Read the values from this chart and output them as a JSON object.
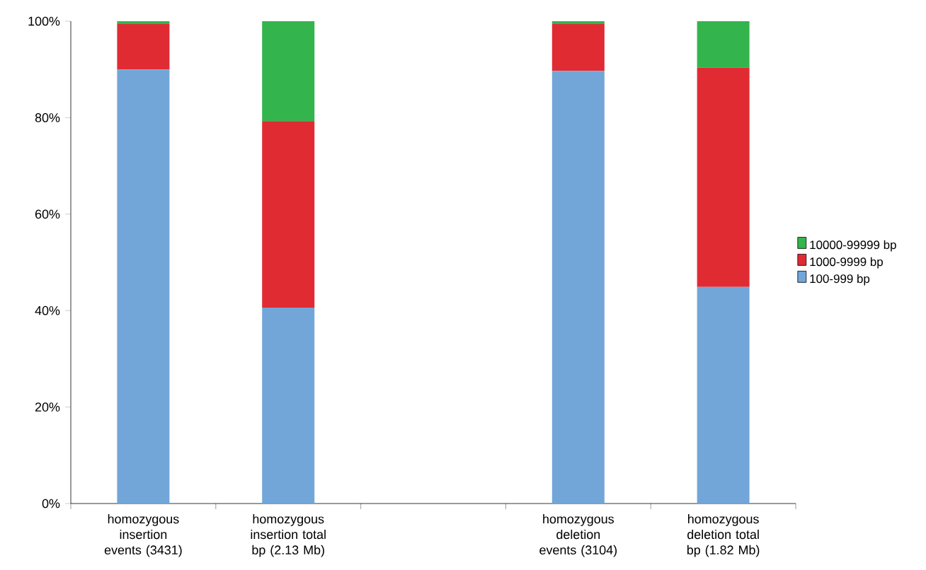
{
  "chart_data": {
    "type": "bar",
    "stacked": true,
    "legend": "right",
    "categories": [
      "homozygous insertion events (3431)",
      "homozygous insertion total bp (2.13 Mb)",
      null,
      "homozygous deletion events (3104)",
      "homozygous deletion total bp (1.82 Mb)"
    ],
    "series": [
      {
        "name": "100-999 bp",
        "color": "#72a6d8",
        "values": [
          90.0,
          40.6,
          null,
          89.7,
          44.9
        ]
      },
      {
        "name": "1000-9999 bp",
        "color": "#e02b33",
        "values": [
          9.4,
          38.7,
          null,
          9.7,
          45.5
        ]
      },
      {
        "name": "10000-99999 bp",
        "color": "#34b44d",
        "values": [
          0.6,
          20.7,
          null,
          0.6,
          9.6
        ]
      }
    ],
    "ylim": [
      0,
      100
    ],
    "yticks": [
      {
        "value": 0,
        "label": "0%"
      },
      {
        "value": 20,
        "label": "20%"
      },
      {
        "value": 40,
        "label": "40%"
      },
      {
        "value": 60,
        "label": "60%"
      },
      {
        "value": 80,
        "label": "80%"
      },
      {
        "value": 100,
        "label": "100%"
      }
    ]
  }
}
